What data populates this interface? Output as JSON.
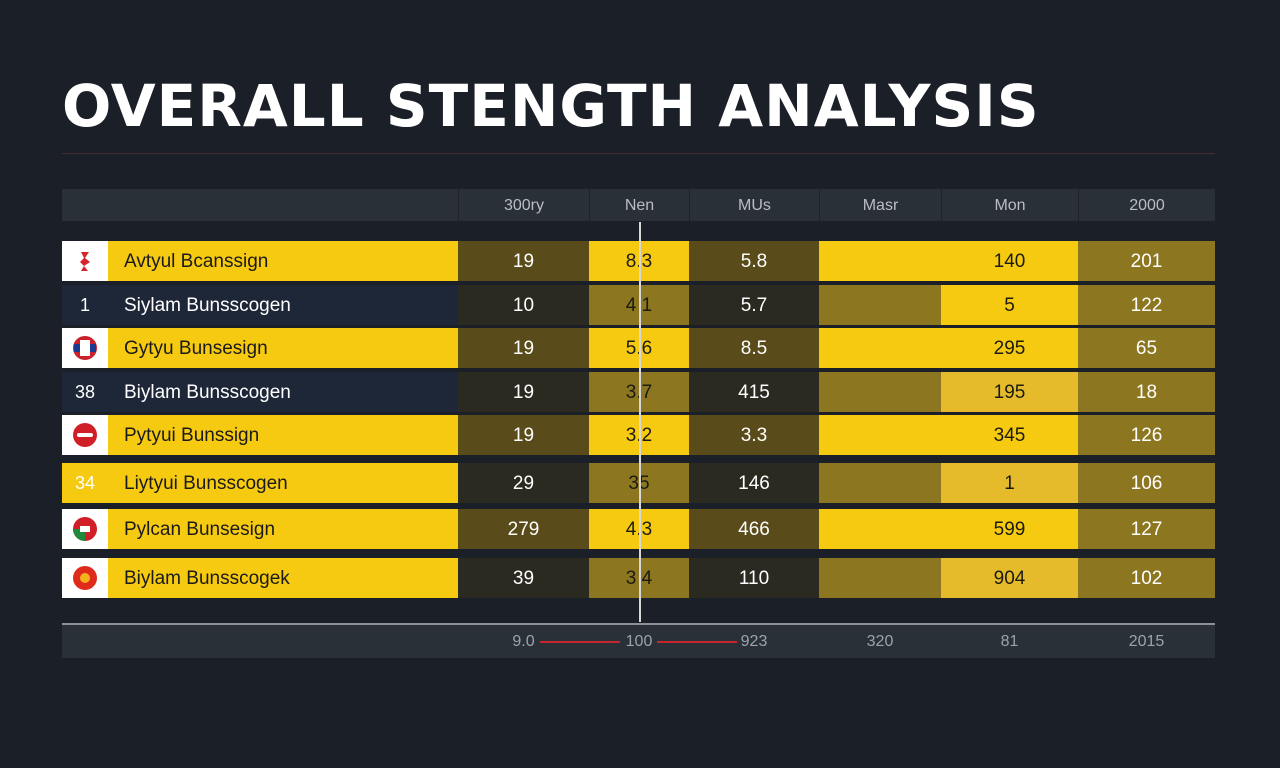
{
  "title": "OVERALL STENGTH ANALYSIS",
  "colors": {
    "background": "#1b1f27",
    "accent_yellow": "#f7ca12",
    "gold": "#e5bb2c",
    "olive": "#8c7620",
    "dark_olive": "#5a4c1a",
    "navy": "#1d2738",
    "plum": "#3a2b3c",
    "footer_red": "#c8262e"
  },
  "chart_data": {
    "type": "table",
    "title": "OVERALL STENGTH ANALYSIS",
    "columns": [
      "300ry",
      "Nen",
      "MUs",
      "Masr",
      "Mon",
      "2000"
    ],
    "rows": [
      {
        "badge": "flag-icon",
        "name": "Avtyul Bcanssign",
        "values": [
          "19",
          "8.3",
          "5.8",
          "",
          "140",
          "201"
        ],
        "score_fraction": 0.75
      },
      {
        "badge": "1",
        "name": "Siylam Bunsscogen",
        "values": [
          "10",
          "4 1",
          "5.7",
          "",
          "5",
          "122"
        ],
        "score_fraction": 0.0
      },
      {
        "badge": "flag-icon",
        "name": "Gytyu Bunsesign",
        "values": [
          "19",
          "5.6",
          "8.5",
          "",
          "295",
          "65"
        ],
        "score_fraction": 1.0
      },
      {
        "badge": "38",
        "name": "Biylam Bunsscogen",
        "values": [
          "19",
          "3.7",
          "415",
          "",
          "195",
          "18"
        ],
        "score_fraction": 0.0
      },
      {
        "badge": "flag-icon",
        "name": "Pytyui Bunssign",
        "values": [
          "19",
          "3.2",
          "3.3",
          "",
          "345",
          "126"
        ],
        "score_fraction": 1.0
      },
      {
        "badge": "34",
        "name": "Liytyui Bunsscogen",
        "values": [
          "29",
          "35",
          "146",
          "",
          "1",
          "106"
        ],
        "score_fraction": 0.78
      },
      {
        "badge": "flag-icon",
        "name": "Pylcan Bunsesign",
        "values": [
          "279",
          "4.3",
          "466",
          "",
          "599",
          "127"
        ],
        "score_fraction": 0.88
      },
      {
        "badge": "flag-icon",
        "name": "Biylam Bunsscogek",
        "values": [
          "39",
          "3 4",
          "110",
          "",
          "904",
          "102"
        ],
        "score_fraction": 0.78
      }
    ],
    "footer": [
      "9.0",
      "100",
      "923",
      "320",
      "81",
      "2015"
    ]
  }
}
